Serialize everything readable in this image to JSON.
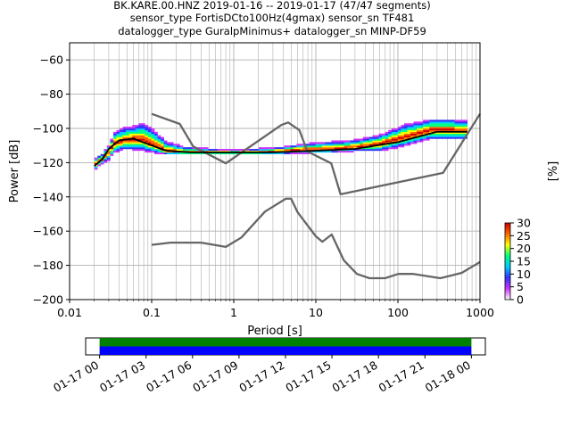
{
  "title": {
    "line1": "BK.KARE.00.HNZ   2019-01-16 -- 2019-01-17  (47/47 segments)",
    "line2": "sensor_type FortisDCto100Hz(4gmax) sensor_sn TF481",
    "line3": "datalogger_type GuralpMinimus+ datalogger_sn MINP-DF59"
  },
  "chart_data": [
    {
      "type": "heatmap",
      "xlabel": "Period [s]",
      "ylabel": "Power [dB]",
      "xscale": "log",
      "xlim": [
        0.01,
        1000
      ],
      "ylim": [
        -200,
        -50
      ],
      "grid": true,
      "x_ticks": [
        {
          "value": 0.01,
          "label": "0.01"
        },
        {
          "value": 0.1,
          "label": "0.1"
        },
        {
          "value": 1,
          "label": "1"
        },
        {
          "value": 10,
          "label": "10"
        },
        {
          "value": 100,
          "label": "100"
        },
        {
          "value": 1000,
          "label": "1000"
        }
      ],
      "y_ticks": [
        {
          "value": -60,
          "label": "−60"
        },
        {
          "value": -80,
          "label": "−80"
        },
        {
          "value": -100,
          "label": "−100"
        },
        {
          "value": -120,
          "label": "−120"
        },
        {
          "value": -140,
          "label": "−140"
        },
        {
          "value": -160,
          "label": "−160"
        },
        {
          "value": -180,
          "label": "−180"
        },
        {
          "value": -200,
          "label": "−200"
        }
      ],
      "colorbar": {
        "label": "[%]",
        "range": [
          0,
          30
        ],
        "ticks": [
          "0",
          "5",
          "10",
          "15",
          "20",
          "25",
          "30"
        ],
        "colormap": [
          "#ffffff",
          "#cc33ff",
          "#3333ff",
          "#00ccff",
          "#00ff80",
          "#ffff00",
          "#ff6600",
          "#cc0000"
        ]
      },
      "series": [
        {
          "kind": "model",
          "color": "#666666",
          "points": [
            [
              0.1,
              -91.5
            ],
            [
              0.22,
              -97.4
            ],
            [
              0.32,
              -110.5
            ],
            [
              0.8,
              -120.4
            ],
            [
              3.8,
              -98
            ],
            [
              4.6,
              -96.5
            ],
            [
              6.3,
              -101
            ],
            [
              7.9,
              -113.5
            ],
            [
              15.4,
              -120.4
            ],
            [
              20,
              -138.5
            ],
            [
              354.8,
              -126
            ],
            [
              10000,
              -91.5
            ]
          ]
        },
        {
          "kind": "model",
          "color": "#666666",
          "points": [
            [
              0.1,
              -168
            ],
            [
              0.17,
              -166.7
            ],
            [
              0.4,
              -166.7
            ],
            [
              0.8,
              -169.2
            ],
            [
              1.24,
              -163.7
            ],
            [
              2.4,
              -148.6
            ],
            [
              4.3,
              -141.1
            ],
            [
              5,
              -141.1
            ],
            [
              6,
              -149
            ],
            [
              10,
              -163
            ],
            [
              12,
              -166.2
            ],
            [
              15.6,
              -162
            ],
            [
              21.9,
              -177
            ],
            [
              31.6,
              -185
            ],
            [
              45,
              -187.5
            ],
            [
              70,
              -187.5
            ],
            [
              101,
              -185
            ],
            [
              154,
              -185
            ],
            [
              328,
              -187.5
            ],
            [
              600,
              -184.4
            ],
            [
              1000,
              -178
            ]
          ]
        },
        {
          "kind": "mean",
          "color": "#000000",
          "points": [
            [
              0.02,
              -122
            ],
            [
              0.025,
              -118
            ],
            [
              0.03,
              -112
            ],
            [
              0.04,
              -107
            ],
            [
              0.06,
              -106
            ],
            [
              0.1,
              -110
            ],
            [
              0.15,
              -113
            ],
            [
              0.3,
              -114
            ],
            [
              1,
              -114
            ],
            [
              3,
              -114
            ],
            [
              10,
              -113
            ],
            [
              30,
              -112
            ],
            [
              100,
              -108
            ],
            [
              300,
              -102
            ],
            [
              700,
              -102
            ]
          ]
        }
      ],
      "density": [
        {
          "period": 0.02,
          "lo": -124,
          "hi": -118,
          "peak": -121
        },
        {
          "period": 0.025,
          "lo": -120,
          "hi": -115,
          "peak": -118
        },
        {
          "period": 0.03,
          "lo": -118,
          "hi": -110,
          "peak": -114
        },
        {
          "period": 0.035,
          "lo": -114,
          "hi": -103,
          "peak": -109
        },
        {
          "period": 0.045,
          "lo": -112,
          "hi": -100,
          "peak": -107
        },
        {
          "period": 0.06,
          "lo": -112,
          "hi": -99,
          "peak": -106
        },
        {
          "period": 0.08,
          "lo": -113,
          "hi": -97,
          "peak": -107
        },
        {
          "period": 0.11,
          "lo": -114,
          "hi": -102,
          "peak": -110
        },
        {
          "period": 0.15,
          "lo": -115,
          "hi": -108,
          "peak": -113
        },
        {
          "period": 0.25,
          "lo": -115,
          "hi": -111,
          "peak": -114
        },
        {
          "period": 0.5,
          "lo": -115,
          "hi": -112,
          "peak": -114
        },
        {
          "period": 1,
          "lo": -115,
          "hi": -113,
          "peak": -114
        },
        {
          "period": 2,
          "lo": -115,
          "hi": -112,
          "peak": -114
        },
        {
          "period": 4,
          "lo": -115,
          "hi": -111,
          "peak": -113
        },
        {
          "period": 8,
          "lo": -114,
          "hi": -109,
          "peak": -112
        },
        {
          "period": 15,
          "lo": -114,
          "hi": -108,
          "peak": -112
        },
        {
          "period": 30,
          "lo": -113,
          "hi": -107,
          "peak": -111
        },
        {
          "period": 60,
          "lo": -113,
          "hi": -104,
          "peak": -109
        },
        {
          "period": 120,
          "lo": -110,
          "hi": -98,
          "peak": -105
        },
        {
          "period": 250,
          "lo": -106,
          "hi": -95,
          "peak": -101
        },
        {
          "period": 500,
          "lo": -106,
          "hi": -95,
          "peak": -101
        },
        {
          "period": 700,
          "lo": -106,
          "hi": -96,
          "peak": -101
        }
      ]
    },
    {
      "type": "timeline",
      "x_ticks": [
        "01-17 00",
        "01-17 03",
        "01-17 06",
        "01-17 09",
        "01-17 12",
        "01-17 15",
        "01-17 18",
        "01-17 21",
        "01-18 00"
      ],
      "xlim_hours": [
        -0.9,
        24.9
      ],
      "coverage_hours": [
        0,
        24
      ],
      "bars": [
        {
          "name": "data",
          "color": "#008000"
        },
        {
          "name": "psd",
          "color": "#0000ff"
        }
      ]
    }
  ]
}
